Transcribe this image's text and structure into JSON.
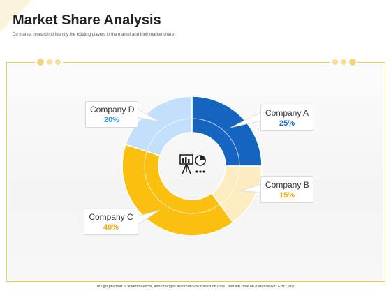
{
  "slide": {
    "title": "Market Share Analysis",
    "subtitle": "Do market research to identify the existing players in the market and their market share.",
    "footer": "This graph/chart is linked to excel, and changes automatically based on data. Just left click on it and select \"Edit Data\"."
  },
  "colors": {
    "accent_yellow": "#f2c94c",
    "company_a": "#1565c0",
    "company_b": "#fdecc0",
    "company_c": "#fbbf0f",
    "company_d": "#c2e0fb",
    "pct_a": "#1565c0",
    "pct_b": "#f2a900",
    "pct_c": "#f2a900",
    "pct_d": "#2e9bef"
  },
  "center_icon": "presentation-board-icon",
  "chart_data": {
    "type": "pie",
    "donut": true,
    "categories": [
      "Company A",
      "Company B",
      "Company C",
      "Company D"
    ],
    "values": [
      25,
      15,
      40,
      20
    ],
    "labels": [
      "25%",
      "15%",
      "40%",
      "20%"
    ],
    "start": "12 o'clock",
    "direction": "clockwise",
    "legend": "callouts"
  }
}
